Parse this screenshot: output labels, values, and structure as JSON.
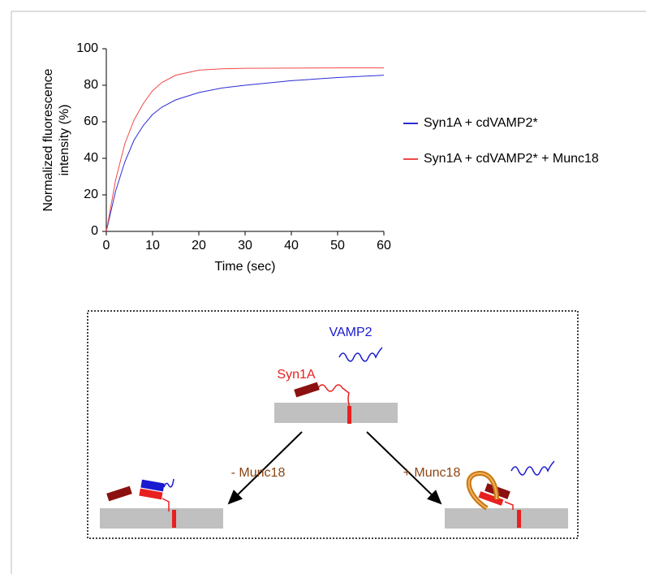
{
  "chart_data": {
    "type": "line",
    "y_label": [
      "Normalized fluorescence",
      "intensity (%)"
    ],
    "x_label": "Time (sec)",
    "x": [
      0,
      2,
      4,
      6,
      8,
      10,
      12,
      15,
      20,
      25,
      30,
      40,
      50,
      60
    ],
    "series": [
      {
        "name": "Syn1A + cdVAMP2*",
        "color": "#2b2bd6",
        "values": [
          0,
          22,
          38,
          50,
          58,
          64,
          68,
          72,
          76,
          78.5,
          80,
          82.5,
          84.2,
          85.5
        ]
      },
      {
        "name": "Syn1A + cdVAMP2* + Munc18",
        "color": "#f04a4a",
        "values": [
          0,
          28,
          48,
          61,
          70,
          77,
          81.5,
          85.5,
          88.3,
          89,
          89.3,
          89.4,
          89.5,
          89.5
        ]
      }
    ],
    "xlim": [
      0,
      60
    ],
    "xticks": [
      0,
      10,
      20,
      30,
      40,
      50,
      60
    ],
    "ylim": [
      0,
      100
    ],
    "yticks": [
      0,
      20,
      40,
      60,
      80,
      100
    ],
    "grid": false,
    "legend": "right"
  },
  "diagram": {
    "labels": {
      "vamp2": "VAMP2",
      "syn1a": "Syn1A",
      "minus_munc18": "- Munc18",
      "plus_munc18": "+ Munc18"
    }
  }
}
